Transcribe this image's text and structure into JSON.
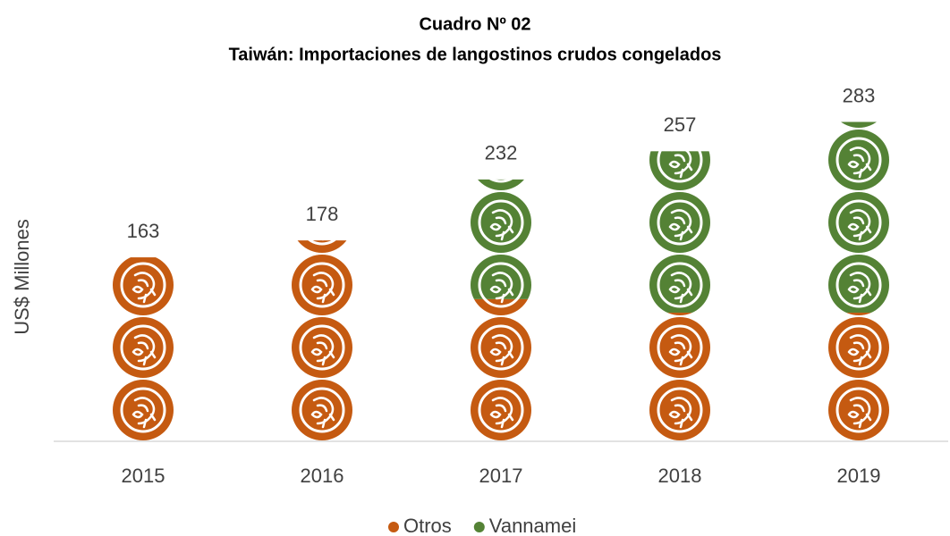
{
  "chart_data": {
    "type": "pictograph_stacked_bar",
    "title": "Cuadro Nº 02",
    "subtitle": "Taiwán: Importaciones de langostinos crudos congelados",
    "y_label": "US$ Millones",
    "categories": [
      "2015",
      "2016",
      "2017",
      "2018",
      "2019"
    ],
    "series": [
      {
        "name": "Otros",
        "color": "#c55a11",
        "values": [
          163,
          178,
          126,
          114,
          114
        ]
      },
      {
        "name": "Vannamei",
        "color": "#548235",
        "values": [
          0,
          0,
          106,
          143,
          169
        ]
      }
    ],
    "totals": [
      163,
      178,
      232,
      257,
      283
    ],
    "ylim": [
      0,
      300
    ],
    "legend": "bottom"
  }
}
